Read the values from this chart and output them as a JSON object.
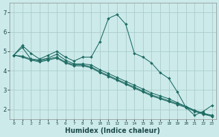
{
  "xlabel": "Humidex (Indice chaleur)",
  "bg_color": "#cceaea",
  "grid_color": "#aacccc",
  "line_color": "#1e6b63",
  "xlim": [
    -0.5,
    23.5
  ],
  "ylim": [
    1.5,
    7.5
  ],
  "yticks": [
    2,
    3,
    4,
    5,
    6,
    7
  ],
  "xtick_labels": [
    "0",
    "1",
    "2",
    "3",
    "4",
    "5",
    "6",
    "7",
    "8",
    "9",
    "10",
    "11",
    "12",
    "13",
    "14",
    "15",
    "16",
    "17",
    "18",
    "19",
    "20",
    "21",
    "22",
    "23"
  ],
  "series": [
    [
      4.8,
      5.3,
      4.9,
      4.6,
      4.8,
      5.0,
      4.7,
      4.5,
      4.7,
      4.7,
      5.5,
      6.7,
      6.9,
      6.4,
      4.9,
      4.7,
      4.4,
      3.9,
      3.6,
      2.9,
      2.1,
      1.7,
      1.9,
      2.2
    ],
    [
      4.8,
      5.2,
      4.6,
      4.55,
      4.65,
      4.85,
      4.55,
      4.35,
      4.35,
      4.3,
      4.05,
      3.85,
      3.65,
      3.45,
      3.25,
      3.05,
      2.85,
      2.7,
      2.55,
      2.35,
      2.15,
      1.95,
      1.8,
      1.65
    ],
    [
      4.8,
      4.75,
      4.6,
      4.5,
      4.6,
      4.7,
      4.45,
      4.3,
      4.3,
      4.2,
      3.95,
      3.75,
      3.55,
      3.35,
      3.15,
      2.95,
      2.75,
      2.6,
      2.45,
      2.3,
      2.15,
      1.95,
      1.8,
      1.7
    ],
    [
      4.8,
      4.7,
      4.55,
      4.45,
      4.55,
      4.65,
      4.4,
      4.25,
      4.25,
      4.15,
      3.9,
      3.7,
      3.5,
      3.3,
      3.1,
      2.9,
      2.7,
      2.55,
      2.4,
      2.25,
      2.1,
      1.9,
      1.75,
      1.65
    ]
  ]
}
